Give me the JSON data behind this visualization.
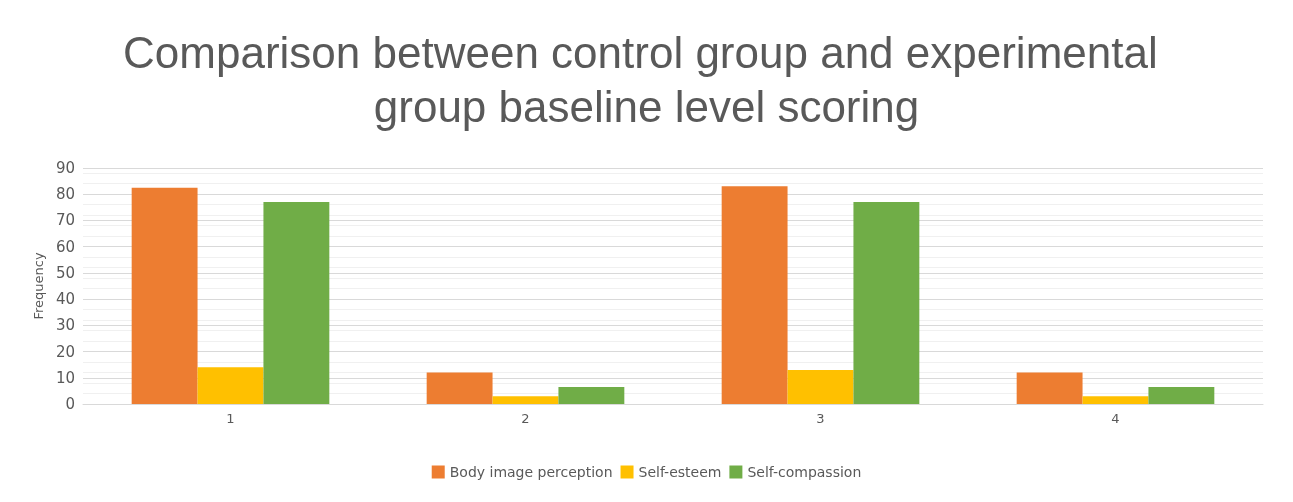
{
  "chart_data": {
    "type": "bar",
    "title": "Comparison between control group and experimental group baseline level scoring",
    "ylabel": "Frequency",
    "categories": [
      "1",
      "2",
      "3",
      "4"
    ],
    "series": [
      {
        "name": "Body image perception",
        "color": "#ed7d31",
        "values": [
          82.5,
          12,
          83,
          12
        ]
      },
      {
        "name": "Self-esteem",
        "color": "#ffc000",
        "values": [
          14,
          3,
          13,
          3
        ]
      },
      {
        "name": "Self-compassion",
        "color": "#70ad47",
        "values": [
          77,
          6.5,
          77,
          6.5
        ]
      }
    ],
    "ylim": [
      0,
      90
    ],
    "yticks": [
      0,
      10,
      20,
      30,
      40,
      50,
      60,
      70,
      80,
      90
    ],
    "grid": true,
    "legend": "bottom"
  }
}
